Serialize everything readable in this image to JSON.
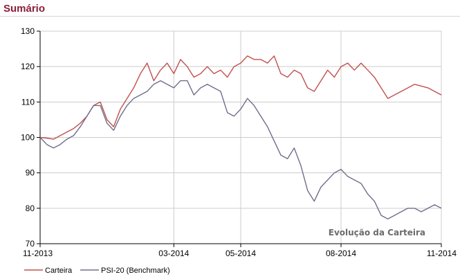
{
  "page": {
    "title": "Sumário"
  },
  "colors": {
    "title": "#8b1d3b",
    "carteira": "#c0504d",
    "benchmark": "#6e6e8c",
    "grid": "#cccccc"
  },
  "chart_data": {
    "type": "line",
    "annotation": "Evolução da Carteira",
    "ylim": [
      70,
      130
    ],
    "yticks": [
      70,
      80,
      90,
      100,
      110,
      120,
      130
    ],
    "x_range": [
      0,
      12
    ],
    "xticks": [
      {
        "label": "11-2013",
        "x": 0
      },
      {
        "label": "03-2014",
        "x": 4
      },
      {
        "label": "05-2014",
        "x": 6
      },
      {
        "label": "08-2014",
        "x": 9
      },
      {
        "label": "11-2014",
        "x": 12
      }
    ],
    "grid": true,
    "legend_position": "bottom-left",
    "series": [
      {
        "name": "Carteira",
        "color": "#c0504d",
        "x": [
          0,
          0.2,
          0.4,
          0.6,
          0.8,
          1.0,
          1.2,
          1.4,
          1.6,
          1.8,
          2.0,
          2.2,
          2.4,
          2.6,
          2.8,
          3.0,
          3.2,
          3.4,
          3.6,
          3.8,
          4.0,
          4.2,
          4.4,
          4.6,
          4.8,
          5.0,
          5.2,
          5.4,
          5.6,
          5.8,
          6.0,
          6.2,
          6.4,
          6.6,
          6.8,
          7.0,
          7.2,
          7.4,
          7.6,
          7.8,
          8.0,
          8.2,
          8.4,
          8.6,
          8.8,
          9.0,
          9.2,
          9.4,
          9.6,
          9.8,
          10.0,
          10.2,
          10.4,
          10.6,
          10.8,
          11.0,
          11.2,
          11.4,
          11.6,
          11.8,
          12.0
        ],
        "values": [
          100,
          99.8,
          99.5,
          100.5,
          101.5,
          102.5,
          104,
          106,
          109,
          110,
          105,
          103,
          108,
          111,
          114,
          118,
          121,
          116,
          119,
          121,
          118,
          122,
          120,
          117,
          118,
          120,
          118,
          119,
          117,
          120,
          121,
          123,
          122,
          122,
          121,
          123,
          118,
          117,
          119,
          118,
          114,
          113,
          116,
          119,
          117,
          120,
          121,
          119,
          121,
          119,
          117,
          114,
          111,
          112,
          113,
          114,
          115,
          114.5,
          114,
          113,
          112
        ]
      },
      {
        "name": "PSI-20 (Benchmark)",
        "color": "#6e6e8c",
        "x": [
          0,
          0.2,
          0.4,
          0.6,
          0.8,
          1.0,
          1.2,
          1.4,
          1.6,
          1.8,
          2.0,
          2.2,
          2.4,
          2.6,
          2.8,
          3.0,
          3.2,
          3.4,
          3.6,
          3.8,
          4.0,
          4.2,
          4.4,
          4.6,
          4.8,
          5.0,
          5.2,
          5.4,
          5.6,
          5.8,
          6.0,
          6.2,
          6.4,
          6.6,
          6.8,
          7.0,
          7.2,
          7.4,
          7.6,
          7.8,
          8.0,
          8.2,
          8.4,
          8.6,
          8.8,
          9.0,
          9.2,
          9.4,
          9.6,
          9.8,
          10.0,
          10.2,
          10.4,
          10.6,
          10.8,
          11.0,
          11.2,
          11.4,
          11.6,
          11.8,
          12.0
        ],
        "values": [
          100,
          98,
          97,
          98,
          99.5,
          100.5,
          103,
          106,
          109,
          109,
          104,
          102,
          106,
          109,
          111,
          112,
          113,
          115,
          116,
          115,
          114,
          116,
          116,
          112,
          114,
          115,
          114,
          113,
          107,
          106,
          108,
          111,
          109,
          106,
          103,
          99,
          95,
          94,
          97,
          92,
          85,
          82,
          86,
          88,
          90,
          91,
          89,
          88,
          87,
          84,
          82,
          78,
          77,
          78,
          79,
          80,
          80,
          79,
          80,
          81,
          80
        ]
      }
    ]
  }
}
